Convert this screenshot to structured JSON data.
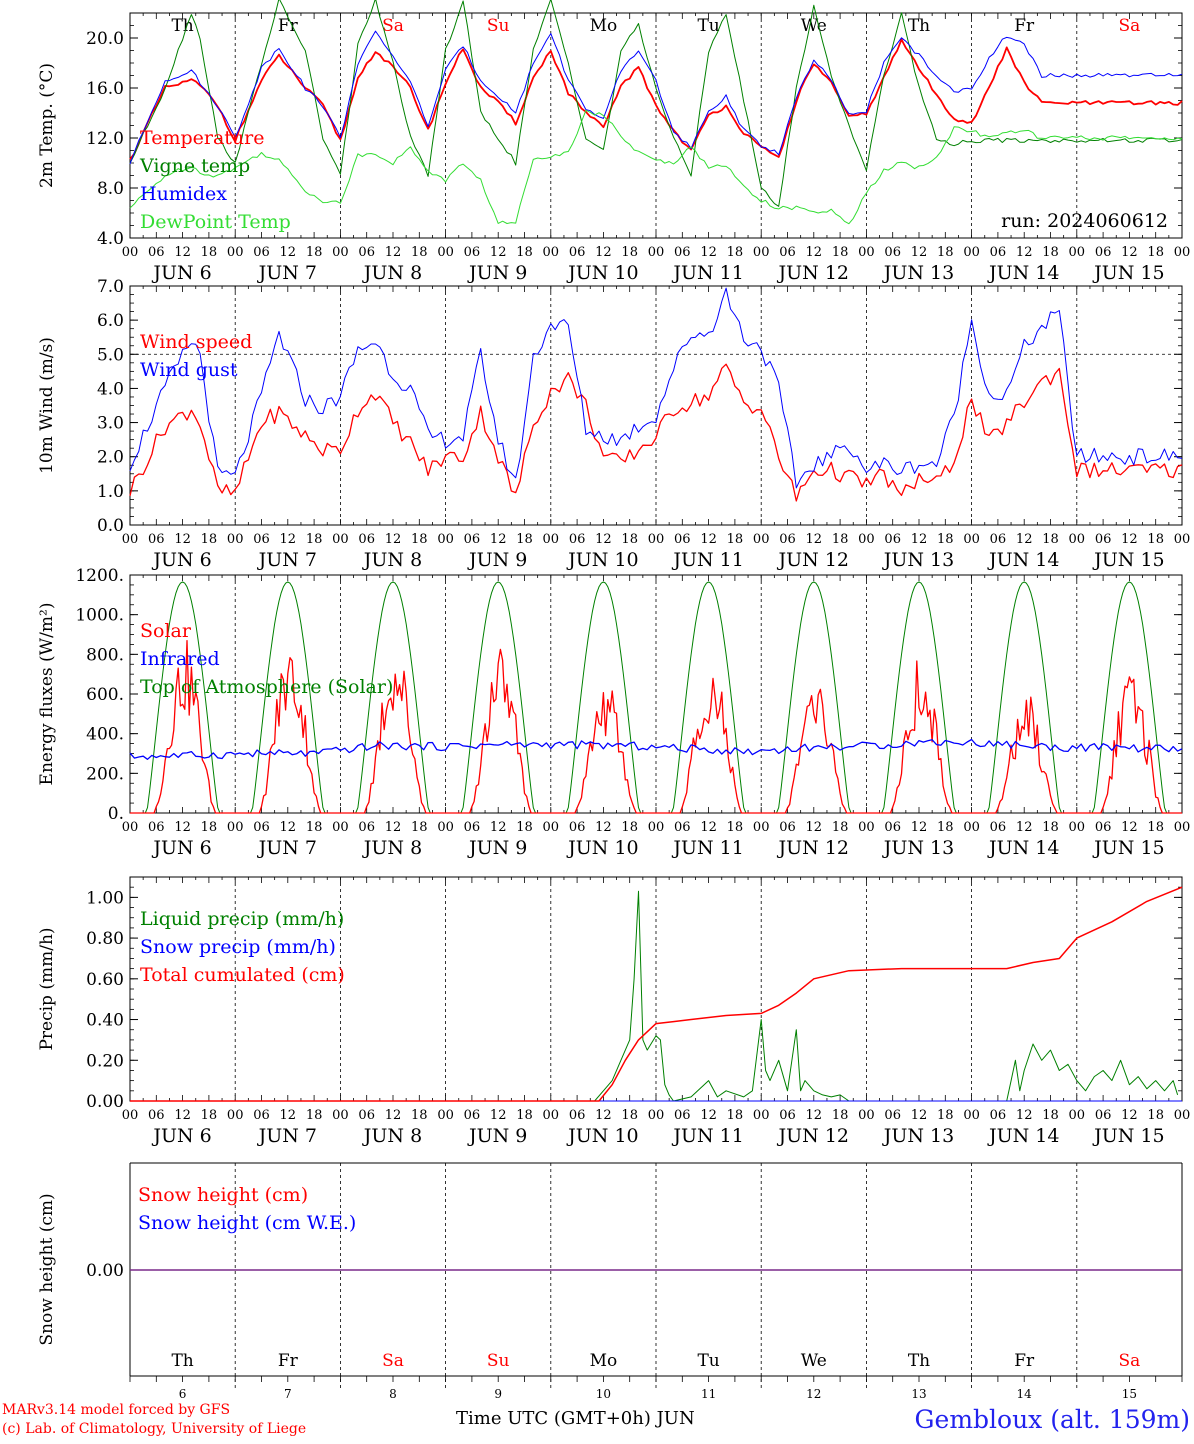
{
  "footer": {
    "credit_line1": "MARv3.14 model forced by GFS",
    "credit_line2": "(c) Lab. of Climatology, University of Liege",
    "xaxis_label": "Time UTC (GMT+0h) JUN",
    "station": "Gembloux (alt. 159m)"
  },
  "days": {
    "weekday_labels": [
      "Th",
      "Fr",
      "Sa",
      "Su",
      "Mo",
      "Tu",
      "We",
      "Th",
      "Fr",
      "Sa"
    ],
    "weekend_flags": [
      false,
      false,
      true,
      true,
      false,
      false,
      false,
      false,
      false,
      true
    ],
    "date_labels": [
      "JUN  6",
      "JUN  7",
      "JUN  8",
      "JUN  9",
      "JUN 10",
      "JUN 11",
      "JUN 12",
      "JUN 13",
      "JUN 14",
      "JUN 15"
    ],
    "day_numbers": [
      "6",
      "7",
      "8",
      "9",
      "10",
      "11",
      "12",
      "13",
      "14",
      "15"
    ],
    "hour_labels": [
      "00",
      "06",
      "12",
      "18"
    ],
    "final_hour_label": "00"
  },
  "colors": {
    "red": "#ff0000",
    "green": "#008000",
    "blue": "#0000ff",
    "lightgreen": "#33dd33",
    "purple": "#7a2a8a",
    "weekday": "#000000",
    "weekend": "#ff0000",
    "station": "#2222ee"
  },
  "chart_data": [
    {
      "type": "line",
      "id": "temperature",
      "ylabel": "2m Temp. (°C)",
      "ylim": [
        4,
        22
      ],
      "yticks": [
        4,
        8,
        12,
        16,
        20
      ],
      "ytick_labels": [
        "4.0",
        "8.0",
        "12.0",
        "16.0",
        "20.0"
      ],
      "annotation": "run: 2024060612",
      "x_unit": "hours since JUN 6 00 UTC",
      "x_knots": [
        0,
        8,
        14,
        16,
        20,
        24,
        30,
        34,
        40,
        44,
        48,
        52,
        56,
        60,
        64,
        68,
        72,
        76,
        80,
        84,
        88,
        92,
        96,
        100,
        104,
        108,
        112,
        116,
        120,
        124,
        128,
        132,
        136,
        140,
        144,
        148,
        152,
        156,
        160,
        164,
        168,
        172,
        176,
        180,
        184,
        188,
        192,
        196,
        200,
        204,
        208,
        212,
        216,
        220,
        224,
        228,
        232,
        236,
        240
      ],
      "series": [
        {
          "name": "Temperature",
          "color": "red",
          "width": 1.8,
          "values": [
            10.2,
            16.0,
            16.6,
            16.2,
            14.6,
            11.8,
            16.6,
            18.6,
            16.0,
            14.6,
            11.8,
            16.8,
            19.0,
            17.6,
            16.0,
            12.6,
            16.4,
            19.2,
            16.0,
            14.8,
            13.2,
            16.8,
            19.0,
            15.6,
            14.0,
            12.8,
            16.2,
            17.6,
            14.6,
            12.6,
            11.0,
            13.8,
            14.6,
            12.4,
            11.2,
            10.4,
            15.0,
            18.0,
            16.4,
            13.6,
            14.0,
            16.8,
            19.8,
            17.6,
            15.4,
            13.6,
            13.2,
            16.0,
            19.2,
            16.4,
            14.8,
            14.8,
            14.8,
            14.8,
            14.8,
            14.8,
            14.8,
            14.8,
            14.8
          ]
        },
        {
          "name": "Vigne temp",
          "color": "green",
          "width": 1.0,
          "values": [
            10.0,
            16.0,
            22.0,
            20.0,
            12.0,
            10.0,
            18.0,
            23.0,
            19.0,
            12.0,
            9.0,
            19.5,
            23.0,
            18.0,
            12.0,
            9.0,
            19.0,
            23.0,
            14.0,
            12.0,
            10.0,
            19.0,
            23.0,
            18.0,
            12.0,
            11.0,
            19.0,
            21.0,
            16.0,
            12.0,
            9.0,
            19.0,
            22.0,
            15.0,
            8.0,
            6.5,
            16.0,
            22.5,
            17.0,
            13.0,
            9.5,
            17.0,
            22.0,
            16.0,
            12.0,
            11.5,
            11.8,
            11.8,
            11.8,
            11.8,
            11.8,
            11.8,
            11.8,
            11.8,
            11.8,
            11.8,
            11.8,
            11.8,
            11.8
          ]
        },
        {
          "name": "Humidex",
          "color": "blue",
          "width": 1.0,
          "values": [
            10.0,
            16.6,
            17.4,
            16.4,
            14.6,
            12.0,
            17.6,
            19.2,
            16.0,
            14.6,
            12.0,
            18.0,
            20.4,
            18.6,
            16.4,
            13.0,
            17.4,
            19.4,
            16.6,
            15.4,
            14.0,
            18.0,
            20.4,
            16.6,
            14.4,
            13.4,
            17.4,
            19.0,
            16.6,
            12.4,
            11.2,
            14.0,
            15.4,
            12.6,
            11.4,
            10.8,
            15.2,
            18.2,
            16.6,
            13.8,
            14.2,
            18.0,
            20.0,
            18.6,
            17.0,
            15.6,
            16.0,
            18.4,
            20.2,
            19.4,
            17.0,
            17.0,
            17.0,
            17.0,
            17.0,
            17.0,
            17.0,
            17.0,
            17.0
          ]
        },
        {
          "name": "DewPoint Temp",
          "color": "lightgreen",
          "width": 1.0,
          "values": [
            6.4,
            9.0,
            9.8,
            9.2,
            9.0,
            9.6,
            10.8,
            10.2,
            7.8,
            7.0,
            6.8,
            10.6,
            10.8,
            10.0,
            11.2,
            9.4,
            8.6,
            10.0,
            8.6,
            5.2,
            5.2,
            10.4,
            10.6,
            10.8,
            14.2,
            13.8,
            12.2,
            10.8,
            10.2,
            10.0,
            11.4,
            9.6,
            9.8,
            8.2,
            7.0,
            6.4,
            6.4,
            6.0,
            6.2,
            5.0,
            7.6,
            9.4,
            10.0,
            9.6,
            10.4,
            12.8,
            12.6,
            12.0,
            12.4,
            12.6,
            12.0,
            12.0,
            12.0,
            12.0,
            12.0,
            12.0,
            12.0,
            12.0,
            12.0
          ]
        }
      ],
      "legend_placement": "left"
    },
    {
      "type": "line",
      "id": "wind",
      "ylabel": "10m Wind (m/s)",
      "ylim": [
        0,
        7
      ],
      "yticks": [
        0,
        1,
        2,
        3,
        4,
        5,
        6,
        7
      ],
      "ytick_labels": [
        "0.0",
        "1.0",
        "2.0",
        "3.0",
        "4.0",
        "5.0",
        "6.0",
        "7.0"
      ],
      "reference_line": 5,
      "x_unit": "hours since JUN 6 00 UTC",
      "x_knots": [
        0,
        8,
        14,
        16,
        20,
        24,
        30,
        34,
        40,
        44,
        48,
        52,
        56,
        60,
        64,
        68,
        72,
        76,
        80,
        84,
        88,
        92,
        96,
        100,
        104,
        108,
        112,
        116,
        120,
        124,
        128,
        132,
        136,
        140,
        144,
        148,
        152,
        156,
        160,
        164,
        168,
        172,
        176,
        180,
        184,
        188,
        192,
        196,
        200,
        204,
        208,
        212,
        216,
        220,
        224,
        228,
        232,
        236,
        240
      ],
      "series": [
        {
          "name": "Wind speed",
          "color": "red",
          "width": 1.3,
          "values": [
            1.0,
            2.9,
            3.4,
            3.0,
            1.0,
            0.9,
            3.0,
            3.3,
            2.6,
            2.2,
            2.2,
            3.4,
            3.9,
            3.0,
            2.4,
            1.6,
            2.0,
            2.0,
            3.3,
            2.0,
            0.8,
            3.0,
            3.9,
            4.3,
            3.5,
            2.0,
            1.8,
            2.2,
            2.6,
            3.4,
            3.6,
            3.8,
            4.6,
            3.6,
            3.4,
            2.0,
            0.8,
            1.6,
            1.6,
            1.4,
            1.2,
            1.5,
            0.8,
            1.4,
            1.2,
            1.9,
            3.7,
            2.4,
            3.0,
            3.6,
            4.2,
            4.5,
            1.6,
            1.6,
            1.6,
            1.6,
            1.6,
            1.6,
            1.6
          ]
        },
        {
          "name": "Wind gust",
          "color": "blue",
          "width": 1.0,
          "values": [
            1.8,
            4.0,
            5.4,
            5.0,
            1.5,
            1.4,
            3.8,
            5.6,
            3.7,
            3.4,
            3.8,
            5.1,
            5.4,
            4.4,
            4.0,
            2.6,
            2.5,
            2.6,
            5.0,
            2.5,
            1.2,
            4.9,
            5.9,
            5.8,
            2.8,
            2.6,
            2.5,
            2.9,
            3.2,
            4.6,
            5.6,
            5.6,
            6.8,
            5.5,
            5.2,
            4.0,
            1.2,
            1.8,
            2.0,
            2.4,
            1.6,
            1.8,
            1.6,
            1.8,
            1.8,
            3.2,
            6.0,
            3.8,
            3.8,
            5.2,
            5.8,
            6.2,
            2.0,
            2.0,
            2.0,
            2.0,
            2.0,
            2.0,
            2.0
          ]
        }
      ],
      "legend_placement": "left"
    },
    {
      "type": "line",
      "id": "energy",
      "ylabel": "Energy fluxes (W/m²)",
      "ylim": [
        0,
        1200
      ],
      "yticks": [
        0,
        200,
        400,
        600,
        800,
        1000,
        1200
      ],
      "ytick_labels": [
        "0.",
        "200.",
        "400.",
        "600.",
        "800.",
        "1000.",
        "1200."
      ],
      "x_unit": "hours since JUN 6 00 UTC",
      "daily_peak_x": [
        12,
        36,
        60,
        84,
        108,
        132,
        156,
        180,
        204,
        228
      ],
      "series": [
        {
          "name": "Solar",
          "color": "red",
          "width": 1.3,
          "daily_peak_values": [
            880,
            880,
            880,
            880,
            680,
            820,
            680,
            800,
            620,
            750
          ]
        },
        {
          "name": "Infrared",
          "color": "blue",
          "width": 1.3,
          "values": [
            285,
            290,
            300,
            300,
            340,
            335,
            345,
            345,
            340,
            325,
            310,
            330,
            340,
            360,
            350,
            330,
            330,
            320
          ]
        },
        {
          "name": "Top of Atmosphere (Solar)",
          "color": "green",
          "width": 1.0,
          "daily_peak_values": [
            1165,
            1165,
            1165,
            1165,
            1165,
            1165,
            1165,
            1165,
            1165,
            1165
          ]
        }
      ],
      "legend_placement": "left"
    },
    {
      "type": "line",
      "id": "precip",
      "ylabel": "Precip (mm/h)",
      "ylim": [
        0,
        1.1
      ],
      "yticks": [
        0,
        0.2,
        0.4,
        0.6,
        0.8,
        1.0
      ],
      "ytick_labels": [
        "0.00",
        "0.20",
        "0.40",
        "0.60",
        "0.80",
        "1.00"
      ],
      "x_unit": "hours since JUN 6 00 UTC",
      "series": [
        {
          "name": "Liquid precip (mm/h)",
          "color": "green",
          "width": 1.0,
          "x": [
            0,
            106,
            108,
            110,
            112,
            114,
            115,
            116,
            117,
            118,
            120,
            121,
            122,
            123,
            124,
            128,
            132,
            134,
            136,
            140,
            142,
            144,
            145,
            146,
            148,
            150,
            152,
            153,
            154,
            156,
            158,
            160,
            162,
            164,
            200,
            201,
            202,
            203,
            204,
            206,
            208,
            210,
            212,
            214,
            216,
            218,
            220,
            222,
            224,
            226,
            228,
            230,
            232,
            234,
            236,
            238,
            239
          ],
          "values": [
            0,
            0,
            0.05,
            0.1,
            0.2,
            0.3,
            0.6,
            1.03,
            0.3,
            0.25,
            0.32,
            0.3,
            0.08,
            0.03,
            0,
            0.02,
            0.1,
            0.02,
            0.05,
            0.02,
            0.05,
            0.4,
            0.15,
            0.1,
            0.2,
            0.05,
            0.35,
            0.05,
            0.1,
            0.05,
            0.03,
            0.02,
            0.03,
            0,
            0,
            0.1,
            0.2,
            0.05,
            0.15,
            0.28,
            0.2,
            0.25,
            0.15,
            0.18,
            0.1,
            0.05,
            0.12,
            0.15,
            0.1,
            0.2,
            0.08,
            0.12,
            0.06,
            0.1,
            0.05,
            0.1,
            0.03
          ]
        },
        {
          "name": "Snow precip (mm/h)",
          "color": "blue",
          "width": 1.0,
          "x": [
            0,
            240
          ],
          "values": [
            0,
            0
          ]
        },
        {
          "name": "Total cumulated (cm)",
          "color": "red",
          "width": 1.5,
          "x": [
            0,
            107,
            110,
            113,
            116,
            120,
            124,
            128,
            136,
            144,
            148,
            152,
            156,
            164,
            176,
            192,
            200,
            206,
            212,
            216,
            224,
            232,
            240
          ],
          "values": [
            0,
            0,
            0.08,
            0.2,
            0.3,
            0.38,
            0.39,
            0.4,
            0.42,
            0.43,
            0.47,
            0.53,
            0.6,
            0.64,
            0.65,
            0.65,
            0.65,
            0.68,
            0.7,
            0.8,
            0.88,
            0.98,
            1.05
          ]
        }
      ],
      "legend_placement": "left"
    },
    {
      "type": "line",
      "id": "snow",
      "ylabel": "Snow height (cm)",
      "ytick_labels": [
        "0.00"
      ],
      "x_unit": "hours since JUN 6 00 UTC",
      "series": [
        {
          "name": "Snow height (cm)",
          "color": "red",
          "x": [
            0,
            240
          ],
          "values": [
            0,
            0
          ]
        },
        {
          "name": "Snow height (cm W.E.)",
          "color": "blue",
          "x": [
            0,
            240
          ],
          "values": [
            0,
            0
          ]
        }
      ],
      "legend_placement": "left"
    }
  ]
}
